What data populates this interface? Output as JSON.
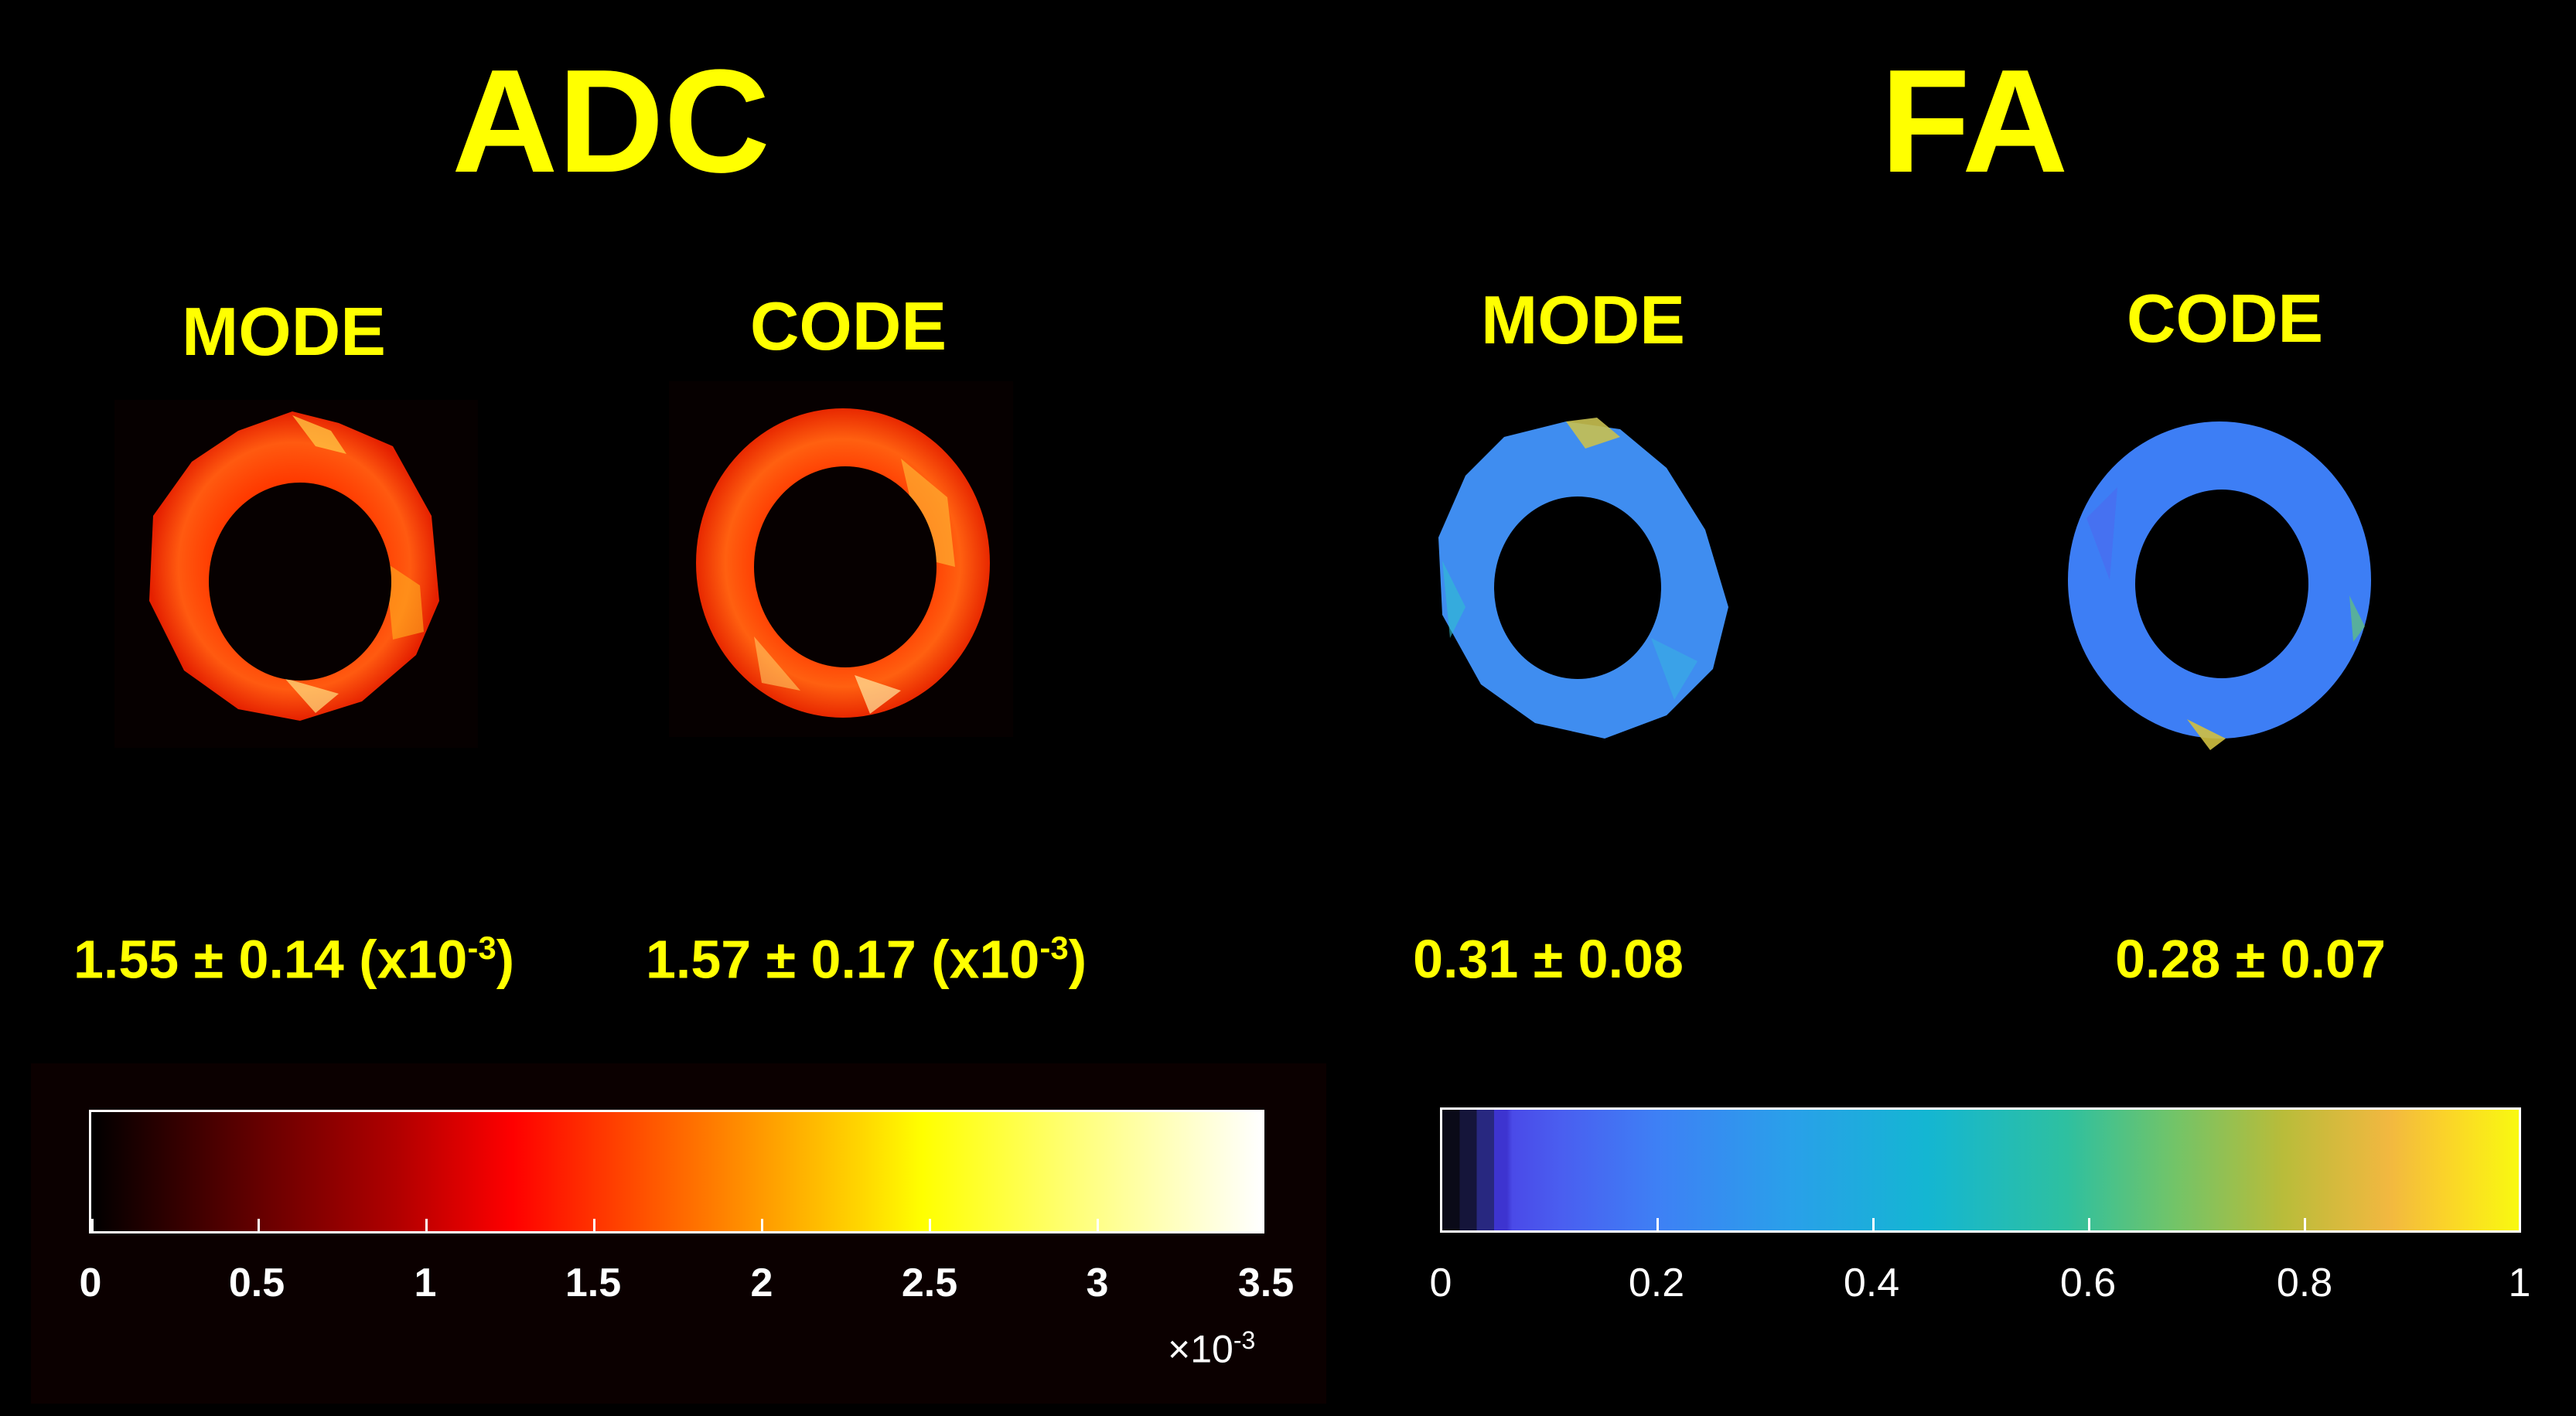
{
  "adc": {
    "title": "ADC",
    "mode": {
      "label": "MODE",
      "stat": "1.55 ± 0.14 (x10",
      "exp": "-3",
      "close": ")"
    },
    "code": {
      "label": "CODE",
      "stat": "1.57 ± 0.17 (x10",
      "exp": "-3",
      "close": ")"
    },
    "colorbar": {
      "ticks": [
        "0",
        "0.5",
        "1",
        "1.5",
        "2",
        "2.5",
        "3",
        "3.5"
      ],
      "exponent_prefix": "×10",
      "exponent": "-3",
      "colormap": "hot"
    }
  },
  "fa": {
    "title": "FA",
    "mode": {
      "label": "MODE",
      "stat": "0.31 ± 0.08"
    },
    "code": {
      "label": "CODE",
      "stat": "0.28 ± 0.07"
    },
    "colorbar": {
      "ticks": [
        "0",
        "0.2",
        "0.4",
        "0.6",
        "0.8",
        "1"
      ],
      "colormap": "parula"
    }
  },
  "colors": {
    "label_color": "#ffff00",
    "background": "#000000"
  }
}
